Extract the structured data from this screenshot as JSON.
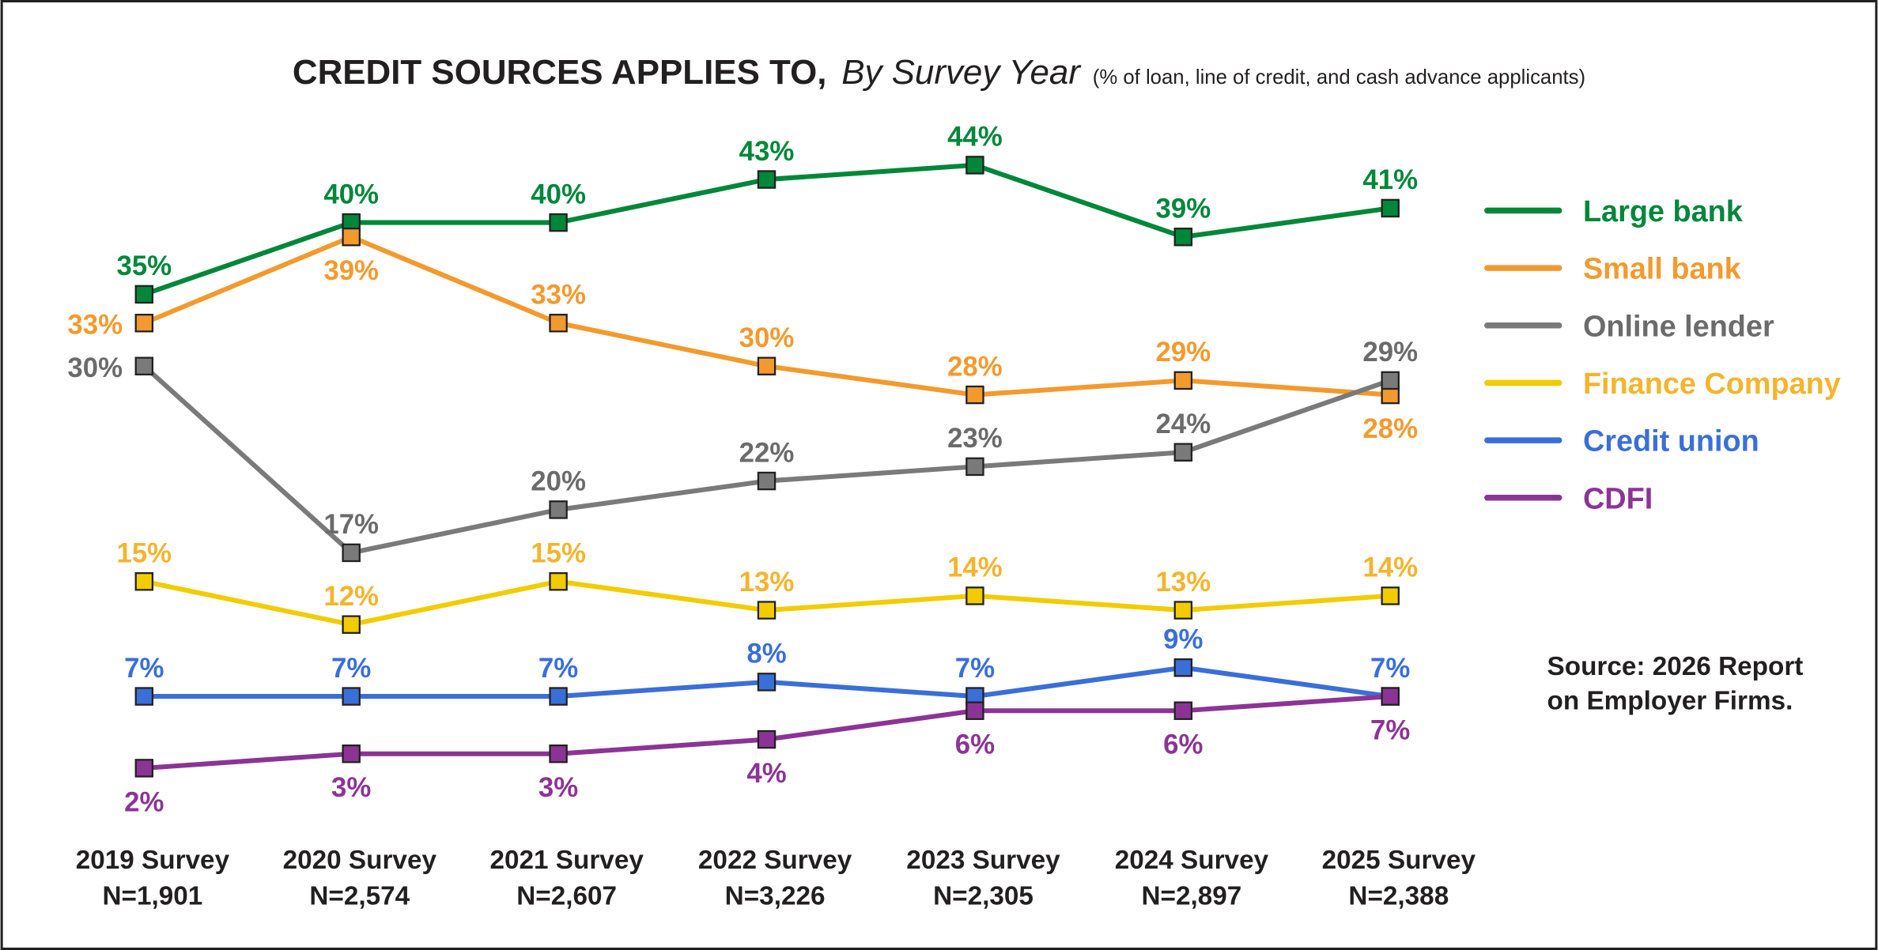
{
  "title": {
    "main": "CREDIT SOURCES APPLIES TO,",
    "italic": "By Survey Year",
    "sub": "(% of loan, line of credit, and cash advance applicants)"
  },
  "source": {
    "line1": "Source: 2026 Report",
    "line2": "on Employer Firms."
  },
  "chart_data": {
    "type": "line",
    "title": "CREDIT SOURCES APPLIES TO, By Survey Year (% of loan, line of credit, and cash advance applicants)",
    "categories": [
      "2019 Survey",
      "2020 Survey",
      "2021 Survey",
      "2022 Survey",
      "2023 Survey",
      "2024 Survey",
      "2025 Survey"
    ],
    "category_sublabels": [
      "N=1,901",
      "N=2,574",
      "N=2,607",
      "N=3,226",
      "N=2,305",
      "N=2,897",
      "N=2,388"
    ],
    "value_suffix": "%",
    "legend_position": "right",
    "grid": false,
    "marker": "square",
    "series": [
      {
        "name": "Large bank",
        "color": "#00873a",
        "label_color": "#00873a",
        "values": [
          35,
          40,
          40,
          43,
          44,
          39,
          41
        ]
      },
      {
        "name": "Small bank",
        "color": "#f39a2e",
        "label_color": "#f39a2e",
        "values": [
          33,
          39,
          33,
          30,
          28,
          29,
          28
        ]
      },
      {
        "name": "Online lender",
        "color": "#7a7a7a",
        "label_color": "#6b6b6b",
        "values": [
          30,
          17,
          20,
          22,
          23,
          24,
          29
        ]
      },
      {
        "name": "Finance Company",
        "color": "#f2cc00",
        "label_color": "#f4b42e",
        "values": [
          15,
          12,
          15,
          13,
          14,
          13,
          14
        ]
      },
      {
        "name": "Credit union",
        "color": "#3a6fd8",
        "label_color": "#3a6fd8",
        "values": [
          7,
          7,
          7,
          8,
          7,
          9,
          7
        ]
      },
      {
        "name": "CDFI",
        "color": "#8c3496",
        "label_color": "#8c3496",
        "values": [
          2,
          3,
          3,
          4,
          6,
          6,
          7
        ]
      }
    ]
  }
}
